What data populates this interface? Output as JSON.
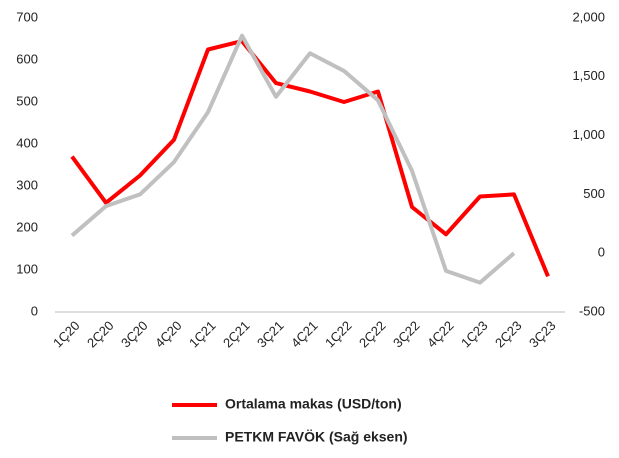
{
  "chart_data": {
    "type": "line",
    "categories": [
      "1Ç20",
      "2Ç20",
      "3Ç20",
      "4Ç20",
      "1Ç21",
      "2Ç21",
      "3Ç21",
      "4Ç21",
      "1Ç22",
      "2Ç22",
      "3Ç22",
      "4Ç22",
      "1Ç23",
      "2Ç23",
      "3Ç23"
    ],
    "series": [
      {
        "name": "Ortalama makas (USD/ton)",
        "color": "#ff0000",
        "values": [
          370,
          260,
          325,
          410,
          625,
          645,
          545,
          525,
          500,
          525,
          250,
          185,
          275,
          280,
          85
        ]
      },
      {
        "name": "PETKM FAVÖK (Sağ eksen)",
        "color": "#c0c0c0",
        "axis": "y2",
        "values": [
          150,
          400,
          500,
          775,
          1200,
          1850,
          1330,
          1700,
          1550,
          1300,
          700,
          -150,
          -250,
          0,
          null
        ]
      }
    ],
    "ylim": [
      0,
      700
    ],
    "yticks": [
      0,
      100,
      200,
      300,
      400,
      500,
      600,
      700
    ],
    "y2lim": [
      -500,
      2000
    ],
    "y2ticks": [
      -500,
      0,
      500,
      {
        "value": 1000,
        "label": "1,000"
      },
      {
        "value": 1500,
        "label": "1,500"
      },
      {
        "value": 2000,
        "label": "2,000"
      }
    ],
    "legend": "bottom"
  }
}
